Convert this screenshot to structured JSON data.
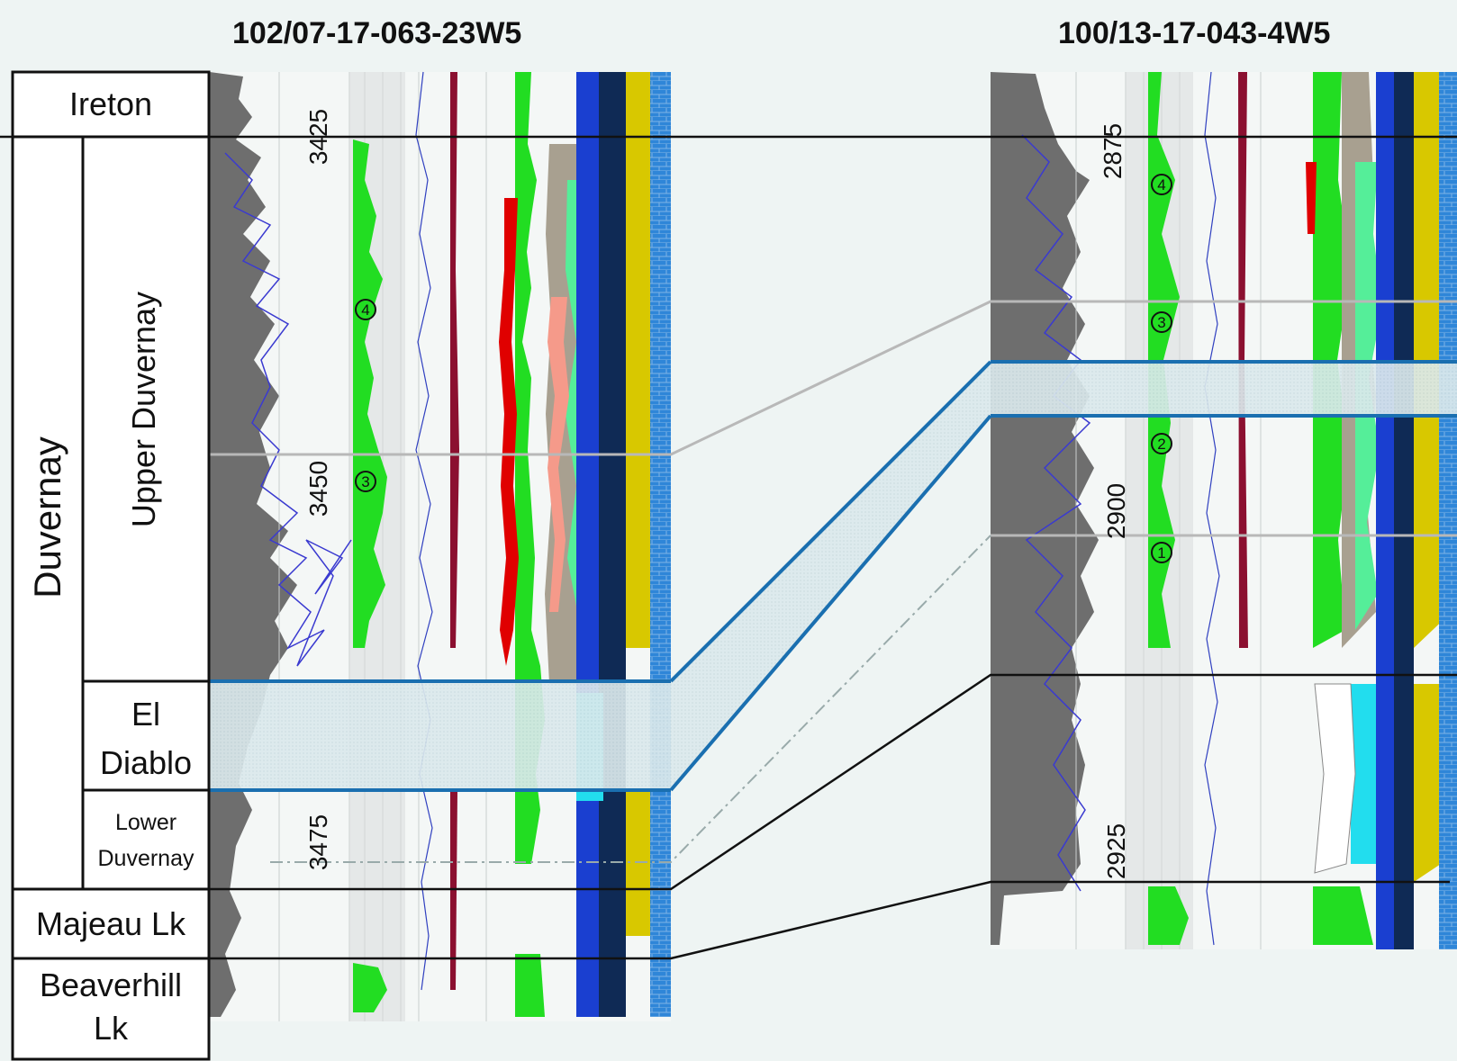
{
  "wells": {
    "left": {
      "name": "102/07-17-063-23W5",
      "depth_labels": [
        "3425",
        "3450",
        "3475"
      ]
    },
    "right": {
      "name": "100/13-17-043-4W5",
      "depth_labels": [
        "2875",
        "2900",
        "2925"
      ]
    }
  },
  "formations": {
    "group": "Duvernay",
    "ireton": "Ireton",
    "upper_duvernay": "Upper Duvernay",
    "el_diablo_line1": "El",
    "el_diablo_line2": "Diablo",
    "lower_duvernay_line1": "Lower",
    "lower_duvernay_line2": "Duvernay",
    "majeau": "Majeau Lk",
    "beaverhill_line1": "Beaverhill",
    "beaverhill_line2": "Lk"
  },
  "markers": {
    "left": [
      "4",
      "3"
    ],
    "right": [
      "4",
      "3",
      "2",
      "1"
    ]
  },
  "colors": {
    "background": "#eef4f3",
    "gamma_gray": "#6e6e6e",
    "curve_green": "#22dd22",
    "light_green": "#55ee99",
    "red": "#e00000",
    "dark_red": "#8b1030",
    "blue_line": "#1a6fb0",
    "navy": "#0f2a55",
    "yellow": "#d8c800",
    "cyan": "#22ddee",
    "brick_blue": "#2f86d8",
    "tan": "#a8a090",
    "salmon": "#f59a8a",
    "el_diablo_fill": "#dbe9ec"
  }
}
